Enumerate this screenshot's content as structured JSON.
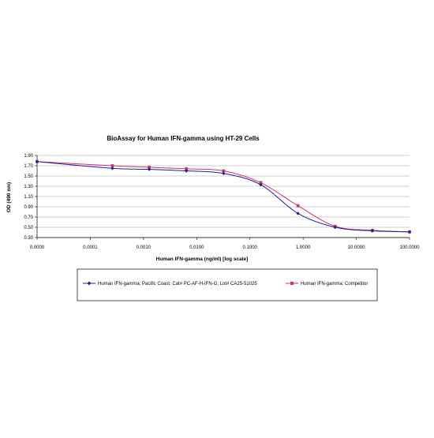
{
  "chart_data": {
    "type": "line",
    "title": "BioAssay for Human IFN-gamma using HT-29 Cells",
    "xlabel": "Human IFN-gamma (ng/ml) [log scale]",
    "ylabel": "OD (490 nm)",
    "x_scale": "log",
    "x_tick_labels": [
      "0.0000",
      "0.0001",
      "0.0010",
      "0.0100",
      "0.1000",
      "1.0000",
      "10.0000",
      "100.0000"
    ],
    "y_tick_labels": [
      "0.30",
      "0.50",
      "0.70",
      "0.90",
      "1.10",
      "1.30",
      "1.50",
      "1.70",
      "1.90"
    ],
    "ylim": [
      0.3,
      1.9
    ],
    "grid": "horizontal",
    "legend_position": "bottom",
    "series": [
      {
        "name": "Human IFN-gamma; Pacific Coast; Cat# PC-AF-H-IFN-G; Lot# CA25-51025",
        "color": "#1f1f8f",
        "marker": "diamond",
        "x": [
          1e-05,
          0.00026,
          0.00128,
          0.0064,
          0.032,
          0.16,
          0.8,
          4.0,
          20.0,
          100.0
        ],
        "values": [
          1.78,
          1.65,
          1.63,
          1.6,
          1.55,
          1.33,
          0.77,
          0.5,
          0.43,
          0.41
        ]
      },
      {
        "name": "Human IFN-gamma; Competitor",
        "color": "#cc3377",
        "marker": "square",
        "x": [
          1e-05,
          0.00026,
          0.00128,
          0.0064,
          0.032,
          0.16,
          0.8,
          4.0,
          20.0,
          100.0
        ],
        "values": [
          1.78,
          1.7,
          1.67,
          1.64,
          1.6,
          1.37,
          0.92,
          0.52,
          0.44,
          0.41
        ]
      }
    ]
  }
}
